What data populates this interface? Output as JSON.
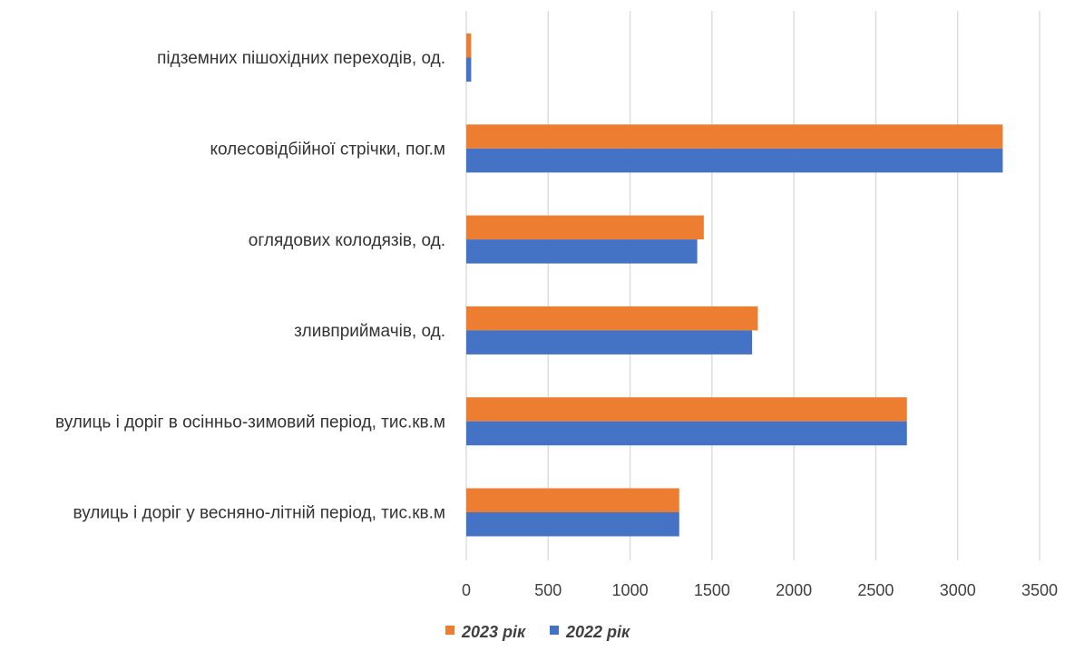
{
  "chart_data": {
    "type": "bar",
    "orientation": "horizontal",
    "categories": [
      "вулиць і доріг у весняно-літній період, тис.кв.м",
      "вулиць і доріг в осінньо-зимовий період, тис.кв.м",
      "зливприймачів, од.",
      "оглядових колодязів, од.",
      "колесовідбійної стрічки, пог.м",
      "підземних пішохідних переходів, од."
    ],
    "series": [
      {
        "name": "2022 рік",
        "color": "#4472C4",
        "values": [
          1300,
          2690,
          1745,
          1410,
          3275,
          30
        ]
      },
      {
        "name": "2023 рік",
        "color": "#ED7D31",
        "values": [
          1300,
          2690,
          1780,
          1450,
          3275,
          30
        ]
      }
    ],
    "x_ticks": [
      "0",
      "500",
      "1000",
      "1500",
      "2000",
      "2500",
      "3000",
      "3500"
    ],
    "xlim": [
      0,
      3500
    ],
    "grid": true,
    "legend_placement": "bottom",
    "legend_order": [
      "2023 рік",
      "2022 рік"
    ]
  }
}
